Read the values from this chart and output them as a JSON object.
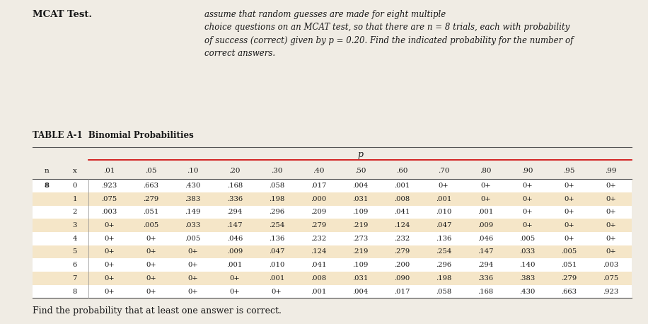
{
  "title_left": "MCAT Test.",
  "title_right": "assume that random guesses are made for eight multiple\nchoice questions on an MCAT test, so that there are n = 8 trials, each with probability\nof success (correct) given by p = 0.20. Find the indicated probability for the number of\ncorrect answers.",
  "table_title": "TABLE A-1  Binomial Probabilities",
  "p_label": "p",
  "col_headers": [
    "n",
    "x",
    ".01",
    ".05",
    ".10",
    ".20",
    ".30",
    ".40",
    ".50",
    ".60",
    ".70",
    ".80",
    ".90",
    ".95",
    ".99"
  ],
  "rows": [
    [
      "8",
      "0",
      ".923",
      ".663",
      ".430",
      ".168",
      ".058",
      ".017",
      ".004",
      ".001",
      "0+",
      "0+",
      "0+",
      "0+",
      "0+"
    ],
    [
      "",
      "1",
      ".075",
      ".279",
      ".383",
      ".336",
      ".198",
      ".000",
      ".031",
      ".008",
      ".001",
      "0+",
      "0+",
      "0+",
      "0+"
    ],
    [
      "",
      "2",
      ".003",
      ".051",
      ".149",
      ".294",
      ".296",
      ".209",
      ".109",
      ".041",
      ".010",
      ".001",
      "0+",
      "0+",
      "0+"
    ],
    [
      "",
      "3",
      "0+",
      ".005",
      ".033",
      ".147",
      ".254",
      ".279",
      ".219",
      ".124",
      ".047",
      ".009",
      "0+",
      "0+",
      "0+"
    ],
    [
      "",
      "4",
      "0+",
      "0+",
      ".005",
      ".046",
      ".136",
      ".232",
      ".273",
      ".232",
      ".136",
      ".046",
      ".005",
      "0+",
      "0+"
    ],
    [
      "",
      "5",
      "0+",
      "0+",
      "0+",
      ".009",
      ".047",
      ".124",
      ".219",
      ".279",
      ".254",
      ".147",
      ".033",
      ".005",
      "0+"
    ],
    [
      "",
      "6",
      "0+",
      "0+",
      "0+",
      ".001",
      ".010",
      ".041",
      ".109",
      ".200",
      ".296",
      ".294",
      ".140",
      ".051",
      ".003"
    ],
    [
      "",
      "7",
      "0+",
      "0+",
      "0+",
      "0+",
      ".001",
      ".008",
      ".031",
      ".090",
      ".198",
      ".336",
      ".383",
      ".279",
      ".075"
    ],
    [
      "",
      "8",
      "0+",
      "0+",
      "0+",
      "0+",
      "0+",
      ".001",
      ".004",
      ".017",
      ".058",
      ".168",
      ".430",
      ".663",
      ".923"
    ]
  ],
  "highlighted_rows": [
    1,
    3,
    5,
    7
  ],
  "highlight_color": "#f5e6c8",
  "normal_color": "#ffffff",
  "footer": "Find the probability that at least one answer is correct.",
  "bg_color": "#f0ece4",
  "header_line_color": "#cc0000",
  "text_color": "#1a1a1a"
}
